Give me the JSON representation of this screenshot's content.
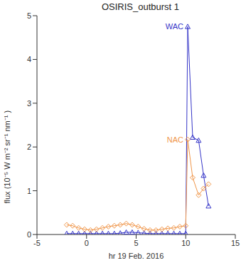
{
  "chart_data": {
    "type": "line",
    "title": "OSIRIS_outburst 1",
    "x_label": "hr 19 Feb. 2016",
    "y_label": "flux (10⁻⁵ W m⁻² sr⁻¹ nm⁻¹ )",
    "xlim": [
      -5,
      15
    ],
    "xticks": [
      -5,
      0,
      5,
      10,
      15
    ],
    "ylim": [
      0,
      5
    ],
    "yticks": [
      0,
      1,
      2,
      3,
      4,
      5
    ],
    "grid": false,
    "series": [
      {
        "name": "WAC",
        "color": "#3535c8",
        "marker": "triangle",
        "line_style": "solid",
        "x": [
          -2,
          -1.4,
          -0.8,
          -0.2,
          0.4,
          1.0,
          1.6,
          2.2,
          2.8,
          3.4,
          4.0,
          4.6,
          5.2,
          5.8,
          6.4,
          7.0,
          7.6,
          8.2,
          8.8,
          9.4,
          10.0,
          10.2,
          10.7,
          11.3,
          11.8,
          12.3
        ],
        "values": [
          0.02,
          0.02,
          0.02,
          0.02,
          0.02,
          0.02,
          0.02,
          0.02,
          0.02,
          0.03,
          0.05,
          0.05,
          0.04,
          0.03,
          0.02,
          0.02,
          0.02,
          0.02,
          0.02,
          0.02,
          0.02,
          4.75,
          2.22,
          2.15,
          1.35,
          0.65
        ]
      },
      {
        "name": "NAC",
        "color": "#f0964a",
        "marker": "diamond",
        "line_style": "solid",
        "x": [
          -2,
          -1.4,
          -0.8,
          -0.2,
          0.4,
          1.0,
          1.6,
          2.2,
          2.8,
          3.4,
          4.0,
          4.6,
          5.2,
          5.8,
          6.4,
          7.0,
          7.6,
          8.2,
          8.8,
          9.4,
          10.0,
          10.2,
          10.7,
          11.3,
          11.8,
          12.3
        ],
        "values": [
          0.22,
          0.2,
          0.15,
          0.12,
          0.1,
          0.12,
          0.15,
          0.18,
          0.2,
          0.22,
          0.25,
          0.22,
          0.18,
          0.13,
          0.1,
          0.1,
          0.12,
          0.14,
          0.15,
          0.18,
          0.2,
          2.17,
          1.3,
          0.9,
          1.05,
          1.15
        ]
      }
    ]
  }
}
